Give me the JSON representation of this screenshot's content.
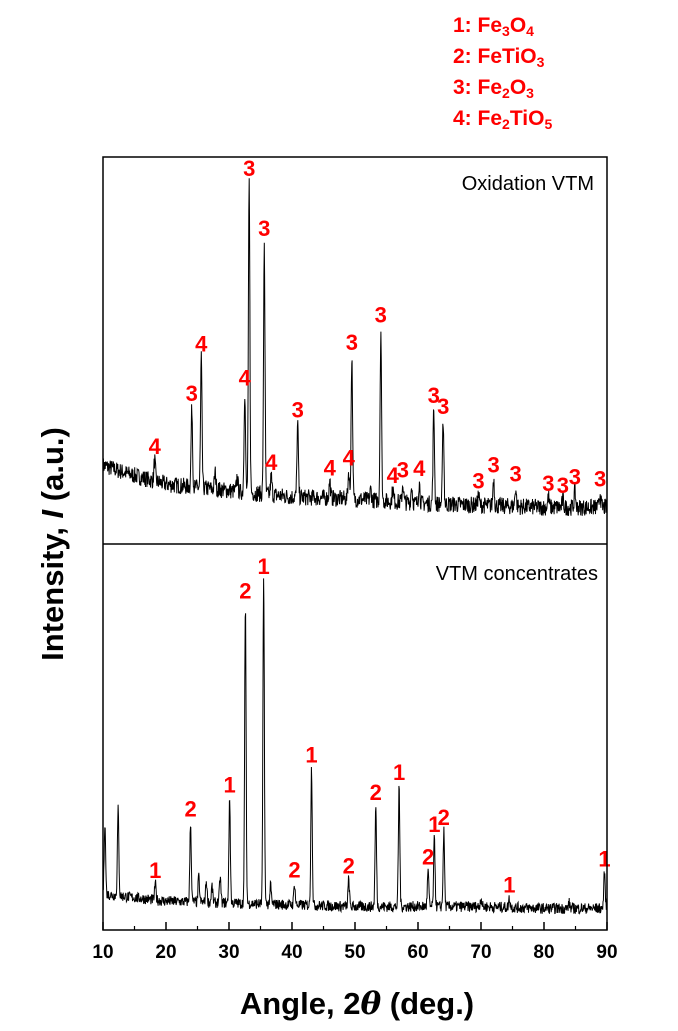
{
  "chart_data": {
    "type": "line",
    "layout": "two stacked XRD pattern panels sharing the x-axis",
    "xlabel_parts": [
      "Angle, 2",
      "θ",
      " (deg.)"
    ],
    "ylabel_parts": [
      "Intensity, ",
      "I",
      " (a.u.)"
    ],
    "xlim": [
      10,
      90
    ],
    "xticks": [
      10,
      20,
      30,
      40,
      50,
      60,
      70,
      80,
      90
    ],
    "y_units": "arbitrary",
    "colors": {
      "trace": "#000000",
      "annotation": "#ff0000",
      "axis": "#000000"
    },
    "legend": [
      {
        "num": "1",
        "parts": [
          "1: Fe",
          "3",
          "O",
          "4",
          ""
        ]
      },
      {
        "num": "2",
        "parts": [
          "2: FeTiO",
          "3",
          "",
          "",
          ""
        ]
      },
      {
        "num": "3",
        "parts": [
          "3: Fe",
          "2",
          "O",
          "3",
          ""
        ]
      },
      {
        "num": "4",
        "parts": [
          "4: Fe",
          "2",
          "TiO",
          "5",
          ""
        ]
      }
    ],
    "panels": [
      {
        "title": "Oxidation VTM",
        "baseline_noise": 4,
        "background": [
          [
            10,
            26
          ],
          [
            14,
            22
          ],
          [
            20,
            17
          ],
          [
            30,
            14
          ],
          [
            40,
            11
          ],
          [
            50,
            10
          ],
          [
            60,
            8
          ],
          [
            70,
            7
          ],
          [
            80,
            6
          ],
          [
            90,
            6
          ]
        ],
        "peaks": [
          {
            "x": 18.2,
            "y": 10,
            "label": "4"
          },
          {
            "x": 24.1,
            "y": 38,
            "label": "3"
          },
          {
            "x": 25.6,
            "y": 62,
            "label": "4"
          },
          {
            "x": 27.8,
            "y": 8,
            "label": ""
          },
          {
            "x": 31.3,
            "y": 7,
            "label": ""
          },
          {
            "x": 32.5,
            "y": 48,
            "label": "4"
          },
          {
            "x": 33.2,
            "y": 148,
            "label": "3"
          },
          {
            "x": 35.6,
            "y": 120,
            "label": "3"
          },
          {
            "x": 36.7,
            "y": 9,
            "label": "4"
          },
          {
            "x": 40.9,
            "y": 35,
            "label": "3"
          },
          {
            "x": 46.0,
            "y": 8,
            "label": "4"
          },
          {
            "x": 49.0,
            "y": 13,
            "label": "4"
          },
          {
            "x": 49.5,
            "y": 68,
            "label": "3"
          },
          {
            "x": 52.5,
            "y": 5,
            "label": ""
          },
          {
            "x": 54.1,
            "y": 82,
            "label": "3"
          },
          {
            "x": 56.0,
            "y": 6,
            "label": "4"
          },
          {
            "x": 57.6,
            "y": 9,
            "label": "3"
          },
          {
            "x": 59.0,
            "y": 8,
            "label": ""
          },
          {
            "x": 60.2,
            "y": 10,
            "label": "4"
          },
          {
            "x": 62.5,
            "y": 45,
            "label": "3"
          },
          {
            "x": 64.0,
            "y": 40,
            "label": "3"
          },
          {
            "x": 69.6,
            "y": 5,
            "label": "3"
          },
          {
            "x": 72.0,
            "y": 13,
            "label": "3"
          },
          {
            "x": 75.5,
            "y": 9,
            "label": "3"
          },
          {
            "x": 80.7,
            "y": 5,
            "label": "3"
          },
          {
            "x": 83.0,
            "y": 4,
            "label": "3"
          },
          {
            "x": 84.9,
            "y": 8,
            "label": "3"
          },
          {
            "x": 88.9,
            "y": 7,
            "label": "3"
          }
        ]
      },
      {
        "title": "VTM concentrates",
        "baseline_noise": 3,
        "background": [
          [
            10,
            10
          ],
          [
            20,
            6
          ],
          [
            30,
            5
          ],
          [
            40,
            4
          ],
          [
            50,
            3
          ],
          [
            60,
            3
          ],
          [
            70,
            3
          ],
          [
            80,
            2
          ],
          [
            90,
            2
          ]
        ],
        "peaks": [
          {
            "x": 10.3,
            "y": 40,
            "label": ""
          },
          {
            "x": 12.4,
            "y": 48,
            "label": ""
          },
          {
            "x": 18.3,
            "y": 9,
            "label": "1"
          },
          {
            "x": 23.9,
            "y": 44,
            "label": "2"
          },
          {
            "x": 25.2,
            "y": 14,
            "label": ""
          },
          {
            "x": 26.4,
            "y": 12,
            "label": ""
          },
          {
            "x": 27.3,
            "y": 9,
            "label": ""
          },
          {
            "x": 28.6,
            "y": 14,
            "label": ""
          },
          {
            "x": 30.1,
            "y": 58,
            "label": "1"
          },
          {
            "x": 32.6,
            "y": 166,
            "label": "2"
          },
          {
            "x": 35.5,
            "y": 180,
            "label": "1"
          },
          {
            "x": 36.6,
            "y": 10,
            "label": ""
          },
          {
            "x": 40.4,
            "y": 12,
            "label": "2"
          },
          {
            "x": 43.1,
            "y": 76,
            "label": "1"
          },
          {
            "x": 49.0,
            "y": 15,
            "label": "2"
          },
          {
            "x": 53.3,
            "y": 56,
            "label": "2"
          },
          {
            "x": 57.0,
            "y": 67,
            "label": "1"
          },
          {
            "x": 61.6,
            "y": 20,
            "label": "2"
          },
          {
            "x": 62.6,
            "y": 38,
            "label": "1"
          },
          {
            "x": 64.1,
            "y": 42,
            "label": "2"
          },
          {
            "x": 70.0,
            "y": 5,
            "label": ""
          },
          {
            "x": 74.5,
            "y": 5,
            "label": "1"
          },
          {
            "x": 84.0,
            "y": 3,
            "label": ""
          },
          {
            "x": 89.6,
            "y": 20,
            "label": "1"
          }
        ]
      }
    ]
  }
}
